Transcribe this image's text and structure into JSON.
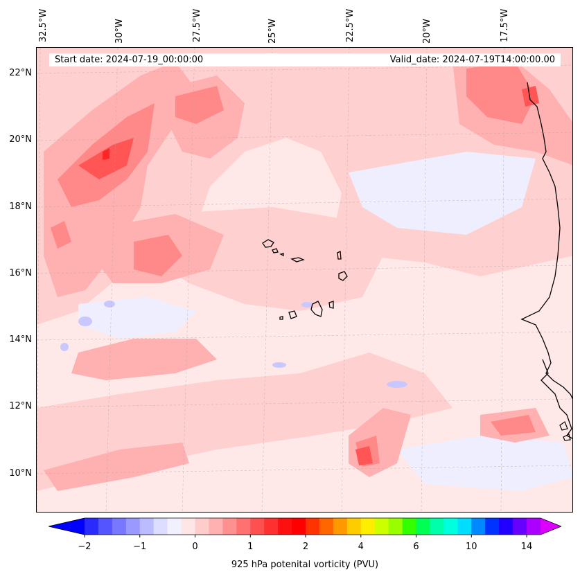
{
  "header": {
    "start_date": "Start date: 2024-07-19_00:00:00",
    "valid_date": "Valid_date: 2024-07-19T14:00:00.00"
  },
  "axes": {
    "lon_labels": [
      "32.5°W",
      "30°W",
      "27.5°W",
      "25°W",
      "22.5°W",
      "20°W",
      "17.5°W"
    ],
    "lat_labels": [
      "22°N",
      "20°N",
      "18°N",
      "16°N",
      "14°N",
      "12°N",
      "10°N"
    ]
  },
  "colorbar": {
    "label": "925 hPa potenital vorticity (PVU)",
    "ticks": [
      "−2",
      "−1",
      "0",
      "1",
      "2",
      "4",
      "6",
      "10",
      "14"
    ],
    "colors": [
      "#0000ff",
      "#2a2aff",
      "#5555ff",
      "#7777ff",
      "#9999ff",
      "#bbbbff",
      "#ddddff",
      "#f0f0ff",
      "#ffe6e6",
      "#ffcccc",
      "#ffb0b0",
      "#ff9090",
      "#ff7070",
      "#ff5050",
      "#ff3030",
      "#ff1010",
      "#ff0000",
      "#ff3300",
      "#ff6600",
      "#ff9900",
      "#ffcc00",
      "#ffee00",
      "#ccff00",
      "#99ff00",
      "#33ff00",
      "#00ff55",
      "#00ffaa",
      "#00ffdd",
      "#00ddff",
      "#0088ff",
      "#0033ff",
      "#2200ff",
      "#6600ff",
      "#aa00ff",
      "#dd00ff"
    ]
  },
  "map": {
    "colors": {
      "background": "#ffe8e8",
      "light_pink": "#ffd0d0",
      "pink": "#ffb0b0",
      "mid_red": "#ff8888",
      "red": "#ff5555",
      "deep_red": "#ff2525",
      "pale_blue": "#eeeeff",
      "blue": "#c8c8ff",
      "coast": "#000000"
    }
  }
}
